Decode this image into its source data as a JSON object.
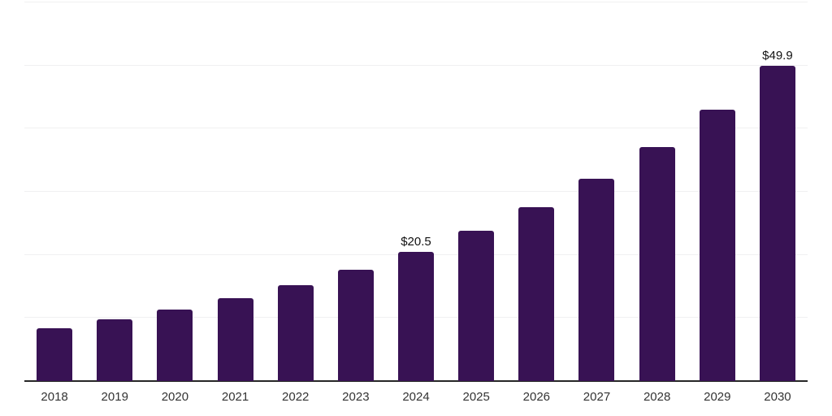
{
  "chart_data": {
    "type": "bar",
    "title": "",
    "xlabel": "",
    "ylabel": "",
    "categories": [
      "2018",
      "2019",
      "2020",
      "2021",
      "2022",
      "2023",
      "2024",
      "2025",
      "2026",
      "2027",
      "2028",
      "2029",
      "2030"
    ],
    "values": [
      8.4,
      9.8,
      11.3,
      13.1,
      15.2,
      17.7,
      20.5,
      23.8,
      27.6,
      32.0,
      37.1,
      43.0,
      49.9
    ],
    "value_labels": {
      "2024": "$20.5",
      "2030": "$49.9"
    },
    "ylim": [
      0,
      60
    ],
    "y_gridlines": [
      0,
      10,
      20,
      30,
      40,
      50,
      60
    ],
    "y_axis_labels_visible": false,
    "grid": "horizontal",
    "legend": "none",
    "colors": {
      "bar": "#381254",
      "gridline": "#f0f0f1",
      "axis": "#262626",
      "value_label": "#111111",
      "tick_label": "#333333",
      "background": "#ffffff"
    }
  }
}
